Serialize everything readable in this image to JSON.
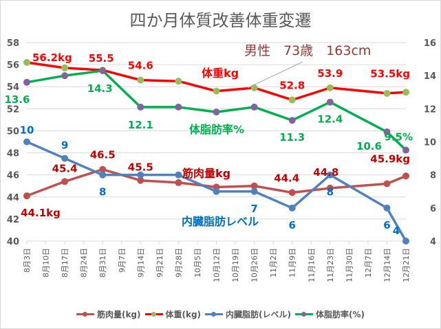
{
  "chart_data": {
    "type": "line",
    "title": "四か月体質改善体重変遷",
    "subtitle": "男性　73歳　163cm",
    "categories": [
      "8月3日",
      "8月10日",
      "8月17日",
      "8月24日",
      "8月31日",
      "9月7日",
      "9月14日",
      "9月21日",
      "9月28日",
      "10月5日",
      "10月12日",
      "10月19日",
      "10月26日",
      "11月2日",
      "11月9日",
      "11月16日",
      "11月23日",
      "11月30日",
      "12月7日",
      "12月14日",
      "12月21日"
    ],
    "left_axis": {
      "ylim": [
        40,
        58
      ],
      "ticks": [
        40,
        42,
        44,
        46,
        48,
        50,
        52,
        54,
        56,
        58
      ]
    },
    "right_axis": {
      "ylim": [
        4,
        16
      ],
      "ticks": [
        4,
        6,
        8,
        10,
        12,
        14,
        16
      ]
    },
    "grid": true,
    "legend_position": "bottom",
    "series": [
      {
        "name": "筋肉量(kg)",
        "axis": "left",
        "color": "#c0504d",
        "marker_color": "#c0504d",
        "values": [
          44.1,
          null,
          45.4,
          null,
          46.5,
          null,
          45.5,
          null,
          45.3,
          null,
          44.9,
          null,
          45.0,
          null,
          44.4,
          null,
          44.8,
          null,
          null,
          45.2,
          45.9
        ],
        "labels": [
          "44.1kg",
          null,
          "45.4",
          null,
          "46.5",
          null,
          "45.5",
          null,
          null,
          null,
          null,
          null,
          null,
          null,
          "44.4",
          null,
          "44.8",
          null,
          null,
          null,
          "45.9kg"
        ],
        "label_color": "#c00000",
        "annotation": "筋肉量kg"
      },
      {
        "name": "体重(kg)",
        "axis": "left",
        "color": "#ff0000",
        "marker_color": "#9bbb59",
        "values": [
          56.2,
          null,
          55.7,
          null,
          55.5,
          null,
          54.6,
          null,
          54.5,
          null,
          53.6,
          null,
          53.9,
          null,
          52.8,
          null,
          53.9,
          null,
          null,
          53.4,
          53.5
        ],
        "labels": [
          "56.2kg",
          null,
          null,
          null,
          "55.5",
          null,
          "54.6",
          null,
          null,
          null,
          null,
          null,
          null,
          null,
          "52.8",
          null,
          "53.9",
          null,
          null,
          null,
          "53.5kg"
        ],
        "label_color": "#ff0000",
        "annotation": "体重kg"
      },
      {
        "name": "内臓脂肪(レベル)",
        "axis": "right",
        "color": "#4f81bd",
        "marker_color": "#4f81bd",
        "values": [
          10,
          null,
          9,
          null,
          8,
          null,
          8,
          null,
          8,
          null,
          7,
          null,
          7,
          null,
          6,
          null,
          8,
          null,
          null,
          6,
          4
        ],
        "labels": [
          "10",
          null,
          "9",
          null,
          "8",
          null,
          null,
          null,
          null,
          null,
          null,
          null,
          "7",
          null,
          "6",
          null,
          "8",
          null,
          null,
          "6",
          "4"
        ],
        "label_color": "#0070c0",
        "annotation": "内臓脂肪レベル"
      },
      {
        "name": "体脂肪率(%)",
        "axis": "right",
        "color": "#00b050",
        "marker_color": "#8064a2",
        "values": [
          13.6,
          null,
          14.0,
          null,
          14.3,
          null,
          12.1,
          null,
          12.1,
          null,
          11.8,
          null,
          12.1,
          null,
          11.3,
          null,
          12.4,
          null,
          null,
          10.6,
          9.5
        ],
        "labels": [
          "13.6",
          null,
          null,
          null,
          "14.3",
          null,
          "12.1",
          null,
          null,
          null,
          null,
          null,
          null,
          null,
          "11.3",
          null,
          "12.4",
          null,
          null,
          "10.6",
          "9.5%"
        ],
        "label_color": "#00b050",
        "annotation": "体脂肪率%"
      }
    ]
  }
}
